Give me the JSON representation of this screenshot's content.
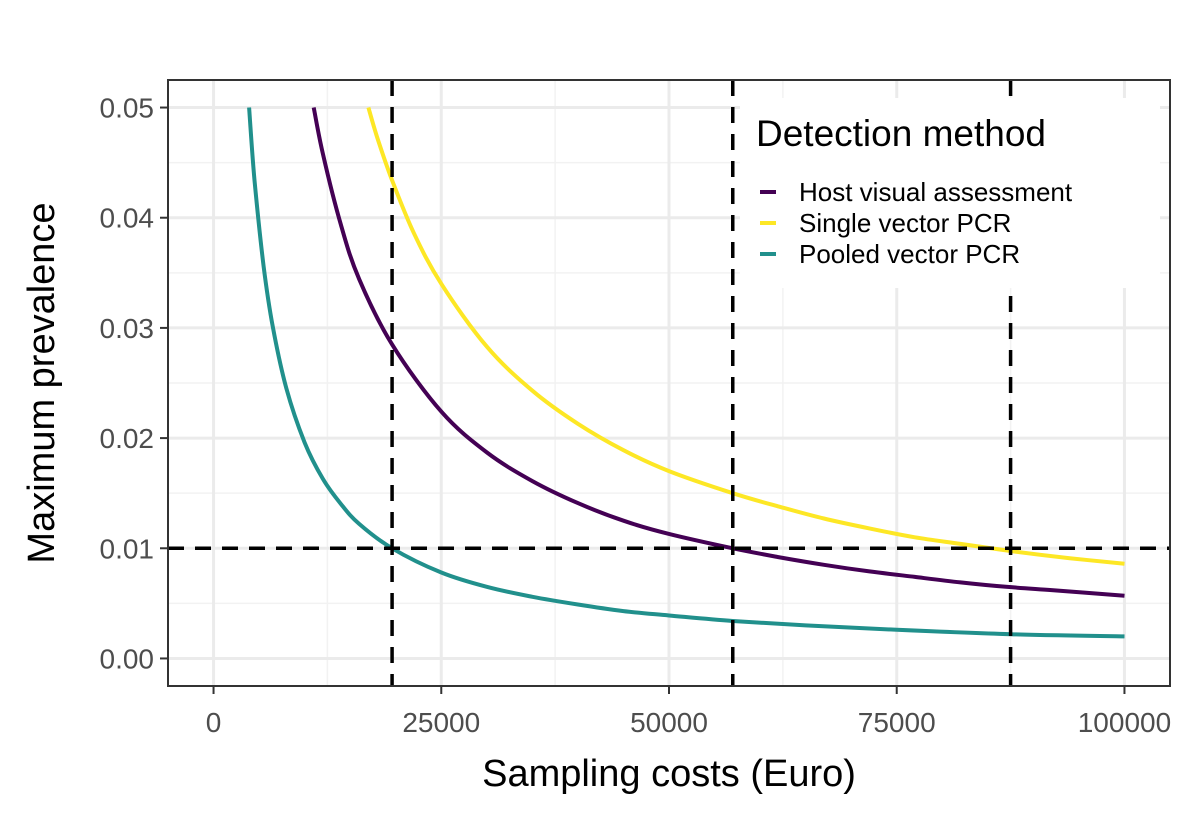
{
  "chart_data": {
    "type": "line",
    "xlabel": "Sampling costs (Euro)",
    "ylabel": "Maximum prevalence",
    "xlim": [
      -5000,
      105000
    ],
    "ylim": [
      -0.0025,
      0.0525
    ],
    "x_ticks": [
      0,
      25000,
      50000,
      75000,
      100000
    ],
    "x_tick_labels": [
      "0",
      "25000",
      "50000",
      "75000",
      "100000"
    ],
    "y_ticks": [
      0.0,
      0.01,
      0.02,
      0.03,
      0.04,
      0.05
    ],
    "y_tick_labels": [
      "0.00",
      "0.01",
      "0.02",
      "0.03",
      "0.04",
      "0.05"
    ],
    "grid": true,
    "legend": {
      "title": "Detection method",
      "position": "top-right"
    },
    "series": [
      {
        "name": "Host visual assessment",
        "color": "#440154",
        "x": [
          11000,
          12000,
          14000,
          16000,
          19600,
          25000,
          30000,
          35000,
          40000,
          45000,
          50000,
          57000,
          62000,
          67000,
          72000,
          77000,
          82000,
          87000,
          92000,
          100000
        ],
        "y": [
          0.05,
          0.0458,
          0.0393,
          0.0344,
          0.0285,
          0.0224,
          0.0187,
          0.0161,
          0.0141,
          0.0125,
          0.0113,
          0.01,
          0.0092,
          0.0085,
          0.0079,
          0.0074,
          0.0069,
          0.0065,
          0.0062,
          0.0057
        ]
      },
      {
        "name": "Single vector PCR",
        "color": "#fde725",
        "x": [
          17000,
          18000,
          19600,
          22000,
          25000,
          30000,
          35000,
          40000,
          45000,
          50000,
          57000,
          62000,
          67000,
          72000,
          77000,
          82000,
          88000,
          94000,
          100000
        ],
        "y": [
          0.05,
          0.0472,
          0.0434,
          0.0386,
          0.034,
          0.0283,
          0.0243,
          0.0213,
          0.0189,
          0.017,
          0.015,
          0.0138,
          0.0127,
          0.0118,
          0.011,
          0.0104,
          0.0097,
          0.0091,
          0.0086
        ]
      },
      {
        "name": "Pooled vector PCR",
        "color": "#21908c",
        "x": [
          3900,
          4500,
          5500,
          6500,
          8000,
          10000,
          12000,
          14000,
          16000,
          19600,
          25000,
          30000,
          35000,
          40000,
          45000,
          50000,
          57000,
          65000,
          75000,
          87500,
          100000
        ],
        "y": [
          0.05,
          0.0434,
          0.0356,
          0.0301,
          0.0245,
          0.0196,
          0.0163,
          0.014,
          0.0122,
          0.01,
          0.0078,
          0.0065,
          0.0056,
          0.0049,
          0.0043,
          0.0039,
          0.0034,
          0.003,
          0.0026,
          0.0022,
          0.002
        ]
      }
    ],
    "reference_lines": {
      "horizontal": [
        0.01
      ],
      "vertical": [
        19600,
        57000,
        87500
      ]
    }
  }
}
